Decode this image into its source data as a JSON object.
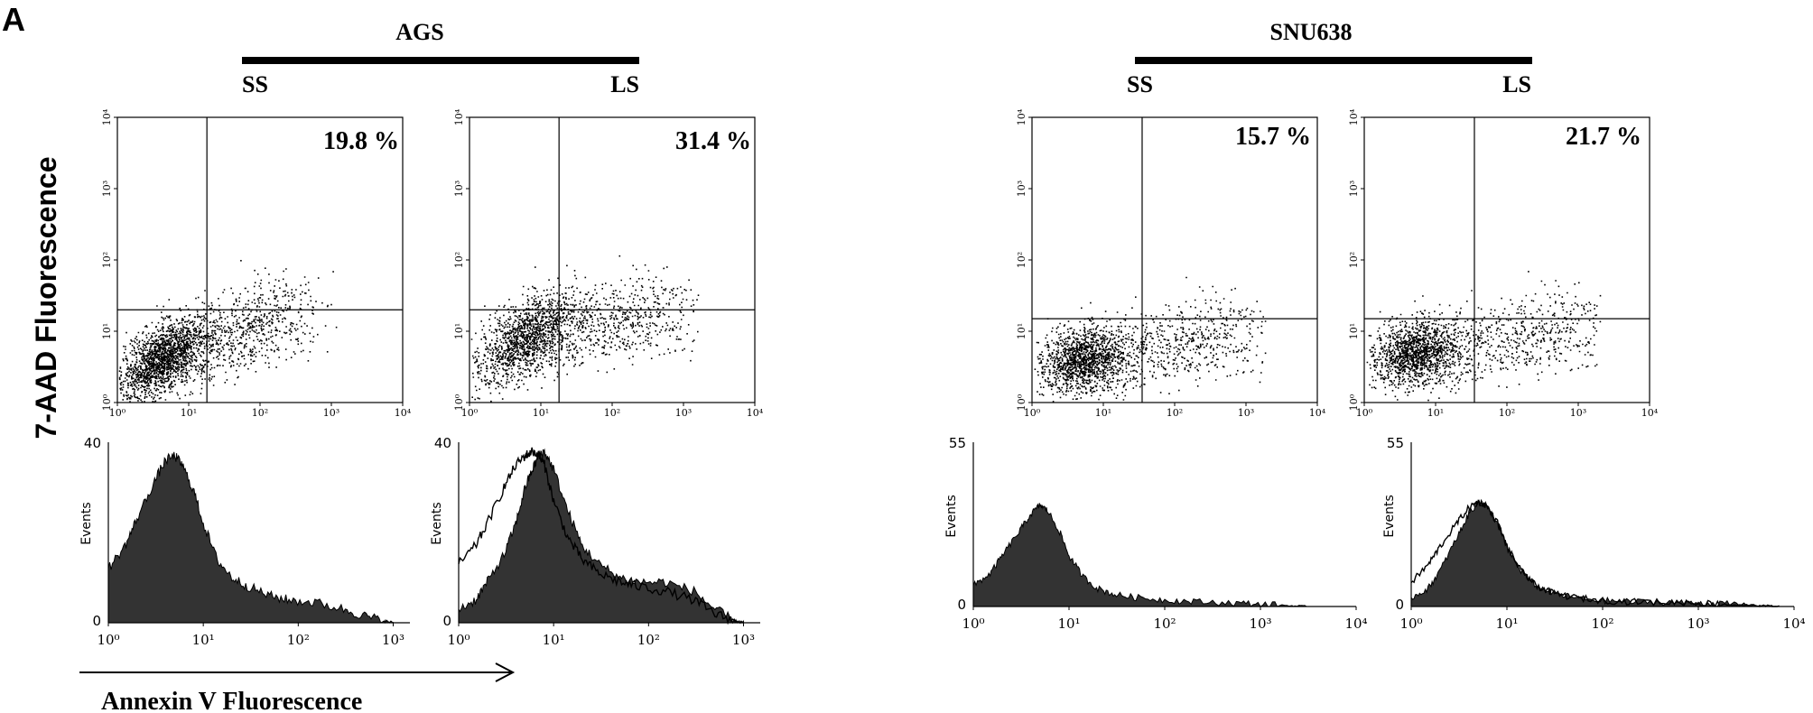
{
  "figure": {
    "panel_letter": "A",
    "y_axis_label": "7-AAD Fluorescence",
    "x_axis_label": "Annexin V Fluorescence",
    "groups": [
      {
        "name": "AGS",
        "left_label": "SS",
        "right_label": "LS"
      },
      {
        "name": "SNU638",
        "left_label": "SS",
        "right_label": "LS"
      }
    ]
  },
  "chart_data": [
    {
      "type": "scatter",
      "group": "AGS",
      "condition": "SS",
      "x_scale": "log",
      "y_scale": "log",
      "xlim": [
        1,
        10000
      ],
      "ylim": [
        1,
        10000
      ],
      "x_tick_labels": [
        "10⁰",
        "10¹",
        "10²",
        "10³",
        "10⁴"
      ],
      "y_tick_labels": [
        "10⁰",
        "10¹",
        "10²",
        "10³",
        "10⁴"
      ],
      "quadrant_gate": {
        "x": 18,
        "y": 20
      },
      "annotation": "19.8 %",
      "population": {
        "main_center": [
          4,
          4
        ],
        "tail_end": [
          300,
          20
        ]
      }
    },
    {
      "type": "scatter",
      "group": "AGS",
      "condition": "LS",
      "x_scale": "log",
      "y_scale": "log",
      "xlim": [
        1,
        10000
      ],
      "ylim": [
        1,
        10000
      ],
      "x_tick_labels": [
        "10⁰",
        "10¹",
        "10²",
        "10³",
        "10⁴"
      ],
      "y_tick_labels": [
        "10⁰",
        "10¹",
        "10²",
        "10³",
        "10⁴"
      ],
      "quadrant_gate": {
        "x": 18,
        "y": 20
      },
      "annotation": "31.4 %",
      "population": {
        "main_center": [
          6,
          8
        ],
        "tail_end": [
          800,
          20
        ]
      }
    },
    {
      "type": "scatter",
      "group": "SNU638",
      "condition": "SS",
      "x_scale": "log",
      "y_scale": "log",
      "xlim": [
        1,
        10000
      ],
      "ylim": [
        1,
        10000
      ],
      "x_tick_labels": [
        "10⁰",
        "10¹",
        "10²",
        "10³",
        "10⁴"
      ],
      "y_tick_labels": [
        "10⁰",
        "10¹",
        "10²",
        "10³",
        "10⁴"
      ],
      "quadrant_gate": {
        "x": 35,
        "y": 15
      },
      "annotation": "15.7 %",
      "population": {
        "main_center": [
          5,
          4
        ],
        "tail_end": [
          1000,
          10
        ]
      }
    },
    {
      "type": "scatter",
      "group": "SNU638",
      "condition": "LS",
      "x_scale": "log",
      "y_scale": "log",
      "xlim": [
        1,
        10000
      ],
      "ylim": [
        1,
        10000
      ],
      "x_tick_labels": [
        "10⁰",
        "10¹",
        "10²",
        "10³",
        "10⁴"
      ],
      "y_tick_labels": [
        "10⁰",
        "10¹",
        "10²",
        "10³",
        "10⁴"
      ],
      "quadrant_gate": {
        "x": 35,
        "y": 15
      },
      "annotation": "21.7 %",
      "population": {
        "main_center": [
          5,
          5
        ],
        "tail_end": [
          1500,
          12
        ]
      }
    },
    {
      "type": "area",
      "group": "AGS",
      "condition": "SS",
      "x_scale": "log",
      "xlim": [
        1,
        1500
      ],
      "ylim": [
        0,
        40
      ],
      "ylabel": "Events",
      "y_tick_labels": [
        "40",
        "0"
      ],
      "x_tick_labels": [
        "10⁰",
        "10¹",
        "10²",
        "10³"
      ],
      "series": [
        {
          "name": "filled",
          "x": [
            1,
            1.5,
            2,
            3,
            4,
            5,
            6,
            8,
            10,
            14,
            20,
            30,
            50,
            80,
            150,
            300,
            500,
            800,
            1000
          ],
          "y": [
            12,
            17,
            23,
            31,
            36,
            37,
            35,
            29,
            22,
            14,
            10,
            8,
            6,
            5,
            4.5,
            3,
            1.5,
            0.4,
            0
          ]
        }
      ]
    },
    {
      "type": "area",
      "group": "AGS",
      "condition": "LS",
      "x_scale": "log",
      "xlim": [
        1,
        1500
      ],
      "ylim": [
        0,
        40
      ],
      "ylabel": "Events",
      "y_tick_labels": [
        "40",
        "0"
      ],
      "x_tick_labels": [
        "10⁰",
        "10¹",
        "10²",
        "10³"
      ],
      "series": [
        {
          "name": "filled",
          "x": [
            1,
            1.5,
            2,
            3,
            4,
            5,
            6,
            7,
            8,
            10,
            14,
            20,
            30,
            50,
            80,
            150,
            300,
            500,
            800,
            1000
          ],
          "y": [
            3,
            5,
            9,
            15,
            22,
            30,
            34,
            37,
            38,
            34,
            25,
            17,
            13,
            10,
            9,
            9,
            7,
            3,
            0.5,
            0
          ]
        },
        {
          "name": "outline",
          "x": [
            1,
            1.5,
            2,
            3,
            4,
            5,
            6,
            7,
            8,
            10,
            14,
            20,
            30,
            50,
            80,
            150,
            300,
            500,
            800,
            1000
          ],
          "y": [
            13,
            17,
            22,
            30,
            35,
            37,
            38,
            37,
            35,
            27,
            19,
            14,
            11,
            9,
            8,
            7,
            5,
            2,
            0.4,
            0
          ]
        }
      ]
    },
    {
      "type": "area",
      "group": "SNU638",
      "condition": "SS",
      "x_scale": "log",
      "xlim": [
        1,
        10000
      ],
      "ylim": [
        0,
        55
      ],
      "ylabel": "Events",
      "y_tick_labels": [
        "55",
        "0"
      ],
      "x_tick_labels": [
        "10⁰",
        "10¹",
        "10²",
        "10³",
        "10⁴"
      ],
      "series": [
        {
          "name": "filled",
          "x": [
            1,
            1.5,
            2,
            3,
            4,
            5,
            6,
            8,
            10,
            14,
            20,
            30,
            50,
            100,
            200,
            500,
            1000,
            2000,
            3000
          ],
          "y": [
            7,
            11,
            17,
            25,
            31,
            34,
            32,
            25,
            17,
            10,
            6,
            4,
            3,
            2.2,
            1.6,
            1.2,
            0.8,
            0.3,
            0
          ]
        }
      ]
    },
    {
      "type": "area",
      "group": "SNU638",
      "condition": "LS",
      "x_scale": "log",
      "xlim": [
        1,
        10000
      ],
      "ylim": [
        0,
        55
      ],
      "ylabel": "Events",
      "y_tick_labels": [
        "55",
        "0"
      ],
      "x_tick_labels": [
        "10⁰",
        "10¹",
        "10²",
        "10³",
        "10⁴"
      ],
      "series": [
        {
          "name": "filled",
          "x": [
            1,
            1.5,
            2,
            3,
            4,
            5,
            6,
            8,
            10,
            14,
            20,
            30,
            50,
            100,
            200,
            500,
            1000,
            2000,
            4000,
            7000
          ],
          "y": [
            3,
            6,
            12,
            23,
            31,
            35,
            34,
            28,
            20,
            12,
            7,
            4.5,
            3,
            2,
            1.6,
            1.4,
            1.2,
            0.8,
            0.3,
            0
          ]
        },
        {
          "name": "outline",
          "x": [
            1,
            1.5,
            2,
            3,
            4,
            5,
            6,
            8,
            10,
            14,
            20,
            30,
            50,
            100,
            200,
            500,
            1000,
            2000,
            4000,
            7000
          ],
          "y": [
            8,
            14,
            20,
            28,
            33,
            35,
            34,
            28,
            20,
            12,
            7,
            4.5,
            3,
            2,
            1.6,
            1.4,
            1.2,
            0.8,
            0.3,
            0
          ]
        }
      ]
    }
  ]
}
